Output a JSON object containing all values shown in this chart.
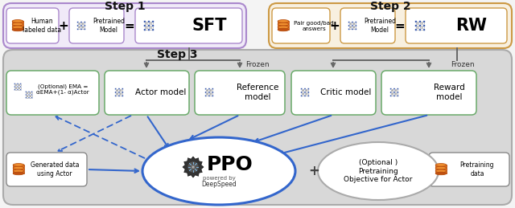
{
  "bg_outer": "#f0f0f0",
  "step1_fc": "#f0eaf8",
  "step1_ec": "#aa88cc",
  "step2_fc": "#f8f0e0",
  "step2_ec": "#cc9944",
  "step3_fc": "#d8d8d8",
  "step3_ec": "#aaaaaa",
  "green_ec": "#6aaa6a",
  "white": "#ffffff",
  "gray_arrow": "#666666",
  "blue_arrow": "#3366cc",
  "step1_label": "Step 1",
  "step2_label": "Step 2",
  "step3_label": "Step 3",
  "frozen_label": "Frozen",
  "ppo_label": "PPO",
  "deepspeed_line1": "powered by",
  "deepspeed_line2": "DeepSpeed",
  "sft_label": "SFT",
  "rw_label": "RW",
  "human_data_label": "Human\nlabeled data",
  "pair_answers_label": "Pair good/bad\nanswers",
  "pretrained_model_label": "Pretrained\nModel",
  "actor_label": "Actor model",
  "reference_label": "Reference\nmodel",
  "critic_label": "Critic model",
  "reward_label": "Reward\nmodel",
  "ema_label": "(Optional) EMA =\nαEMA+(1- α)Actor",
  "generated_label": "Generated data\nusing Actor",
  "optional_obj_label": "(Optional )\nPretraining\nObjective for Actor",
  "pretraining_label": "Pretraining\ndata"
}
